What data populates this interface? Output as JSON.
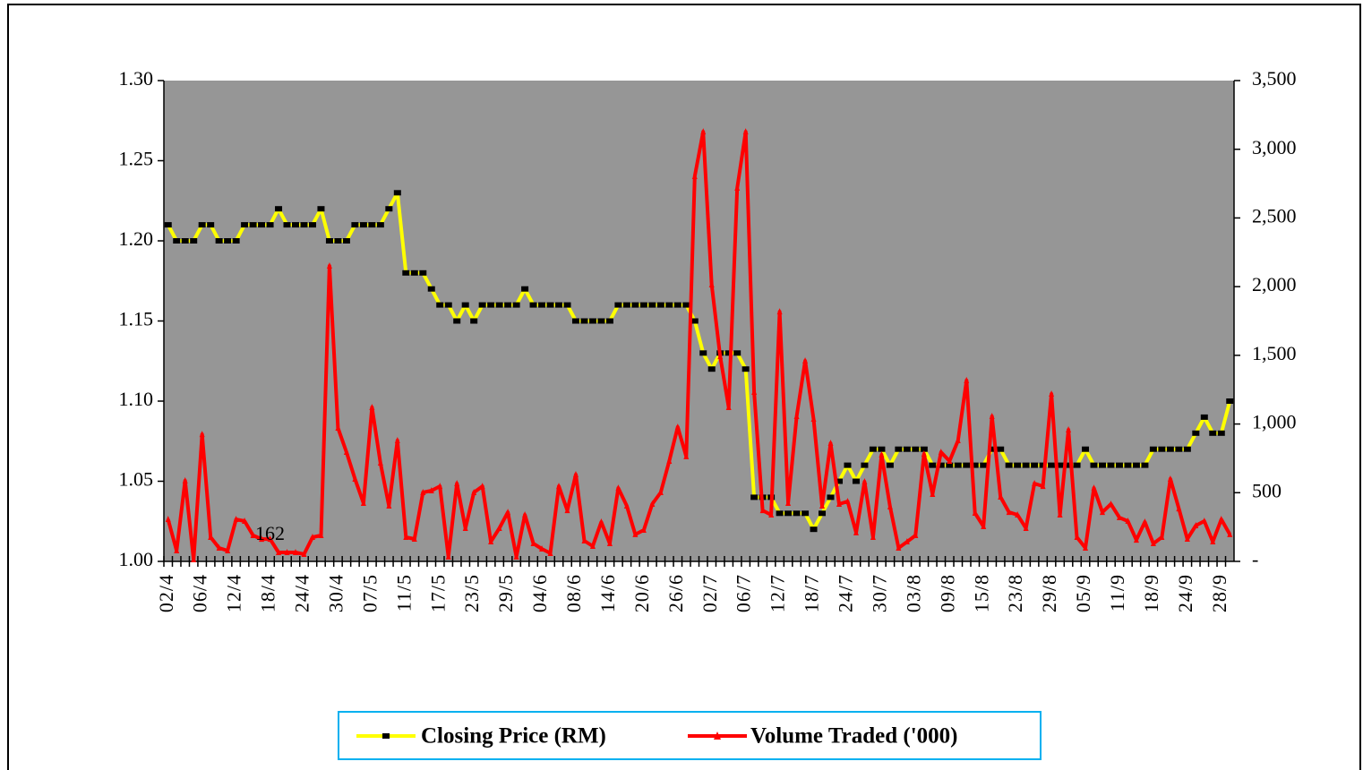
{
  "chart_data": {
    "type": "line",
    "categories": [
      "02/4",
      null,
      null,
      null,
      "06/4",
      null,
      null,
      null,
      "12/4",
      null,
      null,
      null,
      "18/4",
      null,
      null,
      null,
      "24/4",
      null,
      null,
      null,
      "30/4",
      null,
      null,
      null,
      "07/5",
      null,
      null,
      null,
      "11/5",
      null,
      null,
      null,
      "17/5",
      null,
      null,
      null,
      "23/5",
      null,
      null,
      null,
      "29/5",
      null,
      null,
      null,
      "04/6",
      null,
      null,
      null,
      "08/6",
      null,
      null,
      null,
      "14/6",
      null,
      null,
      null,
      "20/6",
      null,
      null,
      null,
      "26/6",
      null,
      null,
      null,
      "02/7",
      null,
      null,
      null,
      "06/7",
      null,
      null,
      null,
      "12/7",
      null,
      null,
      null,
      "18/7",
      null,
      null,
      null,
      "24/7",
      null,
      null,
      null,
      "30/7",
      null,
      null,
      null,
      "03/8",
      null,
      null,
      null,
      "09/8",
      null,
      null,
      null,
      "15/8",
      null,
      null,
      null,
      "23/8",
      null,
      null,
      null,
      "29/8",
      null,
      null,
      null,
      "05/9",
      null,
      null,
      null,
      "11/9",
      null,
      null,
      null,
      "18/9",
      null,
      null,
      null,
      "24/9",
      null,
      null,
      null,
      "28/9",
      null
    ],
    "series": [
      {
        "name": "Closing Price (RM)",
        "color": "#ffff00",
        "marker_color": "#000000",
        "values": [
          1.21,
          1.2,
          1.2,
          1.2,
          1.21,
          1.21,
          1.2,
          1.2,
          1.2,
          1.21,
          1.21,
          1.21,
          1.21,
          1.22,
          1.21,
          1.21,
          1.21,
          1.21,
          1.22,
          1.2,
          1.2,
          1.2,
          1.21,
          1.21,
          1.21,
          1.21,
          1.22,
          1.23,
          1.18,
          1.18,
          1.18,
          1.17,
          1.16,
          1.16,
          1.15,
          1.16,
          1.15,
          1.16,
          1.16,
          1.16,
          1.16,
          1.16,
          1.17,
          1.16,
          1.16,
          1.16,
          1.16,
          1.16,
          1.15,
          1.15,
          1.15,
          1.15,
          1.15,
          1.16,
          1.16,
          1.16,
          1.16,
          1.16,
          1.16,
          1.16,
          1.16,
          1.16,
          1.15,
          1.13,
          1.12,
          1.13,
          1.13,
          1.13,
          1.12,
          1.04,
          1.04,
          1.04,
          1.03,
          1.03,
          1.03,
          1.03,
          1.02,
          1.03,
          1.04,
          1.05,
          1.06,
          1.05,
          1.06,
          1.07,
          1.07,
          1.06,
          1.07,
          1.07,
          1.07,
          1.07,
          1.06,
          1.06,
          1.06,
          1.06,
          1.06,
          1.06,
          1.06,
          1.07,
          1.07,
          1.06,
          1.06,
          1.06,
          1.06,
          1.06,
          1.06,
          1.06,
          1.06,
          1.06,
          1.07,
          1.06,
          1.06,
          1.06,
          1.06,
          1.06,
          1.06,
          1.06,
          1.07,
          1.07,
          1.07,
          1.07,
          1.07,
          1.08,
          1.09,
          1.08,
          1.08,
          1.1
        ]
      },
      {
        "name": "Volume Traded ('000)",
        "color": "#ff0000",
        "axis": "y2",
        "values": [
          306,
          78,
          587,
          13,
          925,
          176,
          98,
          78,
          306,
          293,
          189,
          162,
          162,
          65,
          65,
          65,
          52,
          176,
          189,
          2151,
          971,
          795,
          600,
          424,
          1121,
          717,
          404,
          880,
          176,
          163,
          502,
          515,
          547,
          33,
          567,
          241,
          502,
          547,
          143,
          241,
          358,
          33,
          339,
          130,
          91,
          59,
          547,
          371,
          632,
          150,
          111,
          287,
          130,
          534,
          404,
          196,
          228,
          417,
          502,
          730,
          978,
          763,
          2803,
          3128,
          2014,
          1492,
          1121,
          2718,
          3128,
          1232,
          371,
          339,
          1818,
          424,
          1056,
          1460,
          1036,
          404,
          860,
          417,
          437,
          209,
          580,
          176,
          776,
          398,
          98,
          143,
          189,
          782,
          489,
          795,
          730,
          880,
          1317,
          352,
          254,
          1056,
          469,
          358,
          339,
          241,
          567,
          547,
          1219,
          339,
          958,
          176,
          98,
          534,
          358,
          417,
          319,
          293,
          156,
          287,
          130,
          176,
          600,
          384,
          163,
          261,
          293,
          143,
          306,
          196
        ]
      }
    ],
    "ylim": [
      1.0,
      1.3
    ],
    "yticks": [
      {
        "value": 1.0,
        "label": "1.00"
      },
      1.05,
      {
        "value": 1.1,
        "label": "1.10"
      },
      1.15,
      {
        "value": 1.2,
        "label": "1.20"
      },
      1.25,
      {
        "value": 1.3,
        "label": "1.30"
      }
    ],
    "y2lim": [
      0,
      3500
    ],
    "y2ticks": [
      {
        "value": 0,
        "label": "-"
      },
      500,
      {
        "value": 1000,
        "label": "1,000"
      },
      {
        "value": 1500,
        "label": "1,500"
      },
      {
        "value": 2000,
        "label": "2,000"
      },
      {
        "value": 2500,
        "label": "2,500"
      },
      {
        "value": 3000,
        "label": "3,000"
      },
      {
        "value": 3500,
        "label": "3,500"
      }
    ],
    "plot_background": "#969696",
    "legend": "bottom",
    "labeled_point": {
      "series": 1,
      "index": 12
    }
  }
}
